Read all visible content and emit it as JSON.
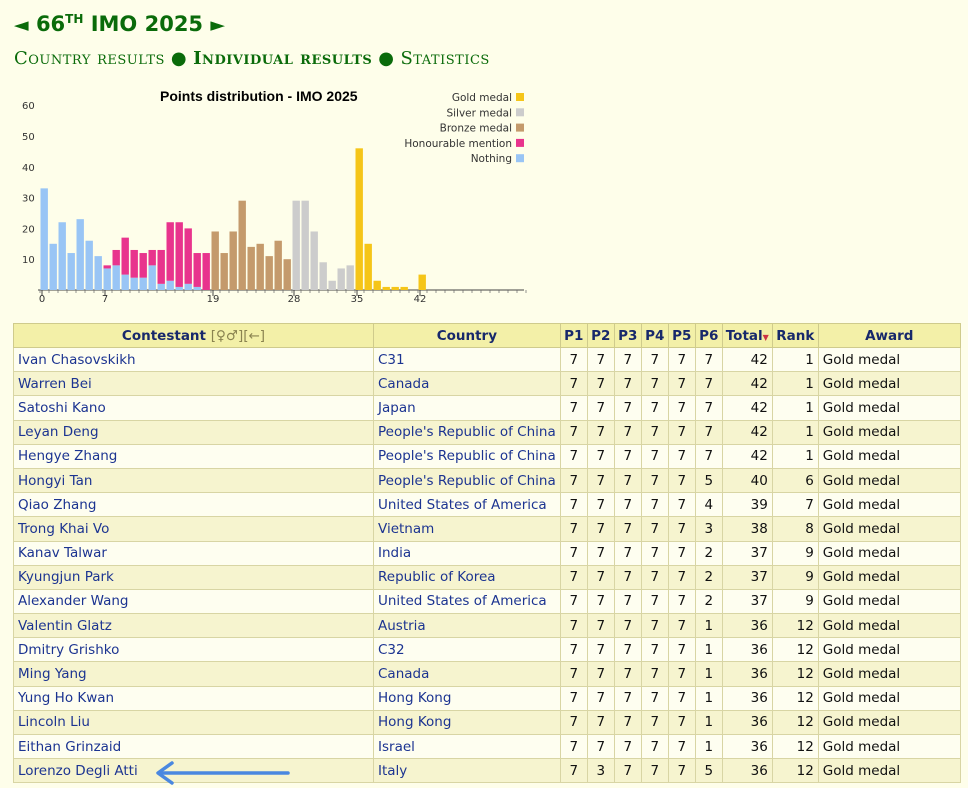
{
  "header": {
    "prev_arrow": "◄",
    "next_arrow": "►",
    "title_number": "66",
    "title_suffix": "TH",
    "title_rest": "IMO 2025"
  },
  "nav": {
    "country_results": "Country results",
    "individual_results": "Individual results",
    "statistics": "Statistics",
    "separator": "●"
  },
  "colors": {
    "gold": "#f5c518",
    "silver": "#cccccc",
    "bronze": "#c49a6c",
    "honourable": "#e8348d",
    "nothing": "#99c5f5",
    "arrow": "#4a88e0"
  },
  "chart_data": {
    "type": "bar",
    "title": "Points distribution - IMO 2025",
    "xlabel": "",
    "ylabel": "",
    "ylim": [
      0,
      65
    ],
    "yticks": [
      10,
      20,
      30,
      40,
      50,
      60
    ],
    "xticks": [
      0,
      7,
      19,
      28,
      35,
      42
    ],
    "grid": false,
    "legend_position": "top-right",
    "legend": [
      {
        "name": "Gold medal",
        "key": "gold"
      },
      {
        "name": "Silver medal",
        "key": "silver"
      },
      {
        "name": "Bronze medal",
        "key": "bronze"
      },
      {
        "name": "Honourable mention",
        "key": "honourable"
      },
      {
        "name": "Nothing",
        "key": "nothing"
      }
    ],
    "scores": [
      {
        "x": 0,
        "nothing": 33
      },
      {
        "x": 1,
        "nothing": 15
      },
      {
        "x": 2,
        "nothing": 22
      },
      {
        "x": 3,
        "nothing": 12
      },
      {
        "x": 4,
        "nothing": 23
      },
      {
        "x": 5,
        "nothing": 16
      },
      {
        "x": 6,
        "nothing": 11
      },
      {
        "x": 7,
        "nothing": 7,
        "honourable": 1
      },
      {
        "x": 8,
        "nothing": 8,
        "honourable": 5
      },
      {
        "x": 9,
        "nothing": 5,
        "honourable": 12
      },
      {
        "x": 10,
        "nothing": 4,
        "honourable": 9
      },
      {
        "x": 11,
        "nothing": 4,
        "honourable": 8
      },
      {
        "x": 12,
        "nothing": 8,
        "honourable": 5
      },
      {
        "x": 13,
        "nothing": 2,
        "honourable": 11
      },
      {
        "x": 14,
        "nothing": 3,
        "honourable": 19
      },
      {
        "x": 15,
        "nothing": 1,
        "honourable": 21
      },
      {
        "x": 16,
        "nothing": 2,
        "honourable": 18
      },
      {
        "x": 17,
        "nothing": 1,
        "honourable": 11
      },
      {
        "x": 18,
        "honourable": 12
      },
      {
        "x": 19,
        "bronze": 19
      },
      {
        "x": 20,
        "bronze": 12
      },
      {
        "x": 21,
        "bronze": 19
      },
      {
        "x": 22,
        "bronze": 29
      },
      {
        "x": 23,
        "bronze": 14
      },
      {
        "x": 24,
        "bronze": 15
      },
      {
        "x": 25,
        "bronze": 11
      },
      {
        "x": 26,
        "bronze": 16
      },
      {
        "x": 27,
        "bronze": 10
      },
      {
        "x": 28,
        "silver": 29
      },
      {
        "x": 29,
        "silver": 29
      },
      {
        "x": 30,
        "silver": 19
      },
      {
        "x": 31,
        "silver": 9
      },
      {
        "x": 32,
        "silver": 3
      },
      {
        "x": 33,
        "silver": 7
      },
      {
        "x": 34,
        "silver": 8
      },
      {
        "x": 35,
        "gold": 46
      },
      {
        "x": 36,
        "gold": 15
      },
      {
        "x": 37,
        "gold": 3
      },
      {
        "x": 38,
        "gold": 1
      },
      {
        "x": 39,
        "gold": 1
      },
      {
        "x": 40,
        "gold": 1
      },
      {
        "x": 41,
        "gold": 0
      },
      {
        "x": 42,
        "gold": 5
      }
    ]
  },
  "table": {
    "headers": {
      "contestant": "Contestant",
      "contestant_controls": "[♀♂][←]",
      "country": "Country",
      "p1": "P1",
      "p2": "P2",
      "p3": "P3",
      "p4": "P4",
      "p5": "P5",
      "p6": "P6",
      "total": "Total",
      "sort_marker": "▼",
      "rank": "Rank",
      "award": "Award"
    },
    "rows": [
      {
        "name": "Ivan Chasovskikh",
        "country": "C31",
        "p": [
          "7",
          "7",
          "7",
          "7",
          "7",
          "7"
        ],
        "total": "42",
        "rank": "1",
        "award": "Gold medal"
      },
      {
        "name": "Warren Bei",
        "country": "Canada",
        "p": [
          "7",
          "7",
          "7",
          "7",
          "7",
          "7"
        ],
        "total": "42",
        "rank": "1",
        "award": "Gold medal"
      },
      {
        "name": "Satoshi Kano",
        "country": "Japan",
        "p": [
          "7",
          "7",
          "7",
          "7",
          "7",
          "7"
        ],
        "total": "42",
        "rank": "1",
        "award": "Gold medal"
      },
      {
        "name": "Leyan Deng",
        "country": "People's Republic of China",
        "p": [
          "7",
          "7",
          "7",
          "7",
          "7",
          "7"
        ],
        "total": "42",
        "rank": "1",
        "award": "Gold medal"
      },
      {
        "name": "Hengye Zhang",
        "country": "People's Republic of China",
        "p": [
          "7",
          "7",
          "7",
          "7",
          "7",
          "7"
        ],
        "total": "42",
        "rank": "1",
        "award": "Gold medal"
      },
      {
        "name": "Hongyi Tan",
        "country": "People's Republic of China",
        "p": [
          "7",
          "7",
          "7",
          "7",
          "7",
          "5"
        ],
        "total": "40",
        "rank": "6",
        "award": "Gold medal"
      },
      {
        "name": "Qiao Zhang",
        "country": "United States of America",
        "p": [
          "7",
          "7",
          "7",
          "7",
          "7",
          "4"
        ],
        "total": "39",
        "rank": "7",
        "award": "Gold medal"
      },
      {
        "name": "Trong Khai Vo",
        "country": "Vietnam",
        "p": [
          "7",
          "7",
          "7",
          "7",
          "7",
          "3"
        ],
        "total": "38",
        "rank": "8",
        "award": "Gold medal"
      },
      {
        "name": "Kanav Talwar",
        "country": "India",
        "p": [
          "7",
          "7",
          "7",
          "7",
          "7",
          "2"
        ],
        "total": "37",
        "rank": "9",
        "award": "Gold medal"
      },
      {
        "name": "Kyungjun Park",
        "country": "Republic of Korea",
        "p": [
          "7",
          "7",
          "7",
          "7",
          "7",
          "2"
        ],
        "total": "37",
        "rank": "9",
        "award": "Gold medal"
      },
      {
        "name": "Alexander Wang",
        "country": "United States of America",
        "p": [
          "7",
          "7",
          "7",
          "7",
          "7",
          "2"
        ],
        "total": "37",
        "rank": "9",
        "award": "Gold medal"
      },
      {
        "name": "Valentin Glatz",
        "country": "Austria",
        "p": [
          "7",
          "7",
          "7",
          "7",
          "7",
          "1"
        ],
        "total": "36",
        "rank": "12",
        "award": "Gold medal"
      },
      {
        "name": "Dmitry Grishko",
        "country": "C32",
        "p": [
          "7",
          "7",
          "7",
          "7",
          "7",
          "1"
        ],
        "total": "36",
        "rank": "12",
        "award": "Gold medal"
      },
      {
        "name": "Ming Yang",
        "country": "Canada",
        "p": [
          "7",
          "7",
          "7",
          "7",
          "7",
          "1"
        ],
        "total": "36",
        "rank": "12",
        "award": "Gold medal"
      },
      {
        "name": "Yung Ho Kwan",
        "country": "Hong Kong",
        "p": [
          "7",
          "7",
          "7",
          "7",
          "7",
          "1"
        ],
        "total": "36",
        "rank": "12",
        "award": "Gold medal"
      },
      {
        "name": "Lincoln Liu",
        "country": "Hong Kong",
        "p": [
          "7",
          "7",
          "7",
          "7",
          "7",
          "1"
        ],
        "total": "36",
        "rank": "12",
        "award": "Gold medal"
      },
      {
        "name": "Eithan Grinzaid",
        "country": "Israel",
        "p": [
          "7",
          "7",
          "7",
          "7",
          "7",
          "1"
        ],
        "total": "36",
        "rank": "12",
        "award": "Gold medal"
      },
      {
        "name": "Lorenzo Degli Atti",
        "country": "Italy",
        "p": [
          "7",
          "3",
          "7",
          "7",
          "7",
          "5"
        ],
        "total": "36",
        "rank": "12",
        "award": "Gold medal"
      }
    ]
  }
}
